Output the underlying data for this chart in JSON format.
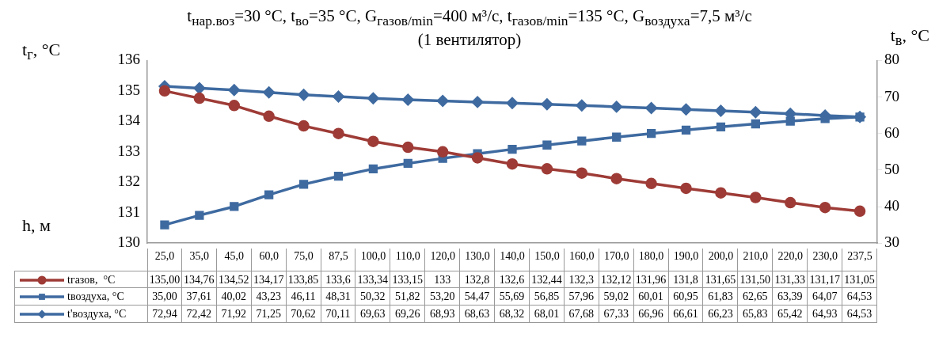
{
  "chart_data": {
    "type": "line",
    "title": "t$_{нар.воз}$=30 °C, t$_{во}$=35 °C, G$_{газов/min}$=400 м³/с, t$_{газов/min}$=135 °C, G$_{воздуха}$=7,5 м³/с",
    "subtitle": "(1 вентилятор)",
    "xlabel": "h, м",
    "ylabel": "t$_{г}$, °C",
    "y2label": "t$_{в}$, °C",
    "categories": [
      "25,0",
      "35,0",
      "45,0",
      "60,0",
      "75,0",
      "87,5",
      "100,0",
      "110,0",
      "120,0",
      "130,0",
      "140,0",
      "150,0",
      "160,0",
      "170,0",
      "180,0",
      "190,0",
      "200,0",
      "210,0",
      "220,0",
      "230,0",
      "237,5"
    ],
    "series": [
      {
        "name": "tгазов,  °C",
        "color": "#9e3b36",
        "marker": "circle",
        "values": [
          135.0,
          134.76,
          134.52,
          134.17,
          133.85,
          133.6,
          133.34,
          133.15,
          133,
          132.8,
          132.6,
          132.44,
          132.3,
          132.12,
          131.96,
          131.8,
          131.65,
          131.5,
          131.33,
          131.17,
          131.05
        ],
        "value_labels": [
          "135,00",
          "134,76",
          "134,52",
          "134,17",
          "133,85",
          "133,6",
          "133,34",
          "133,15",
          "133",
          "132,8",
          "132,6",
          "132,44",
          "132,3",
          "132,12",
          "131,96",
          "131,8",
          "131,65",
          "131,50",
          "131,33",
          "131,17",
          "131,05"
        ]
      },
      {
        "name": "tвоздуха, °C",
        "color": "#3e6aa0",
        "marker": "square",
        "axis": "y2",
        "values": [
          35.0,
          37.61,
          40.02,
          43.23,
          46.11,
          48.31,
          50.32,
          51.82,
          53.2,
          54.47,
          55.69,
          56.85,
          57.96,
          59.02,
          60.01,
          60.95,
          61.83,
          62.65,
          63.39,
          64.07,
          64.53
        ],
        "value_labels": [
          "35,00",
          "37,61",
          "40,02",
          "43,23",
          "46,11",
          "48,31",
          "50,32",
          "51,82",
          "53,20",
          "54,47",
          "55,69",
          "56,85",
          "57,96",
          "59,02",
          "60,01",
          "60,95",
          "61,83",
          "62,65",
          "63,39",
          "64,07",
          "64,53"
        ]
      },
      {
        "name": "t'воздуха, °C",
        "color": "#3e6aa0",
        "marker": "diamond",
        "axis": "y2",
        "values": [
          72.94,
          72.42,
          71.92,
          71.25,
          70.62,
          70.11,
          69.63,
          69.26,
          68.93,
          68.63,
          68.32,
          68.01,
          67.68,
          67.33,
          66.96,
          66.61,
          66.23,
          65.83,
          65.42,
          64.93,
          64.53
        ],
        "value_labels": [
          "72,94",
          "72,42",
          "71,92",
          "71,25",
          "70,62",
          "70,11",
          "69,63",
          "69,26",
          "68,93",
          "68,63",
          "68,32",
          "68,01",
          "67,68",
          "67,33",
          "66,96",
          "66,61",
          "66,23",
          "65,83",
          "65,42",
          "64,93",
          "64,53"
        ]
      }
    ],
    "ylim": [
      130,
      136
    ],
    "yticks": [
      130,
      131,
      132,
      133,
      134,
      135,
      136
    ],
    "y2lim": [
      30,
      80
    ],
    "y2ticks": [
      30,
      40,
      50,
      60,
      70,
      80
    ],
    "grid": false,
    "legend": "bottom",
    "line_style": "solid"
  }
}
